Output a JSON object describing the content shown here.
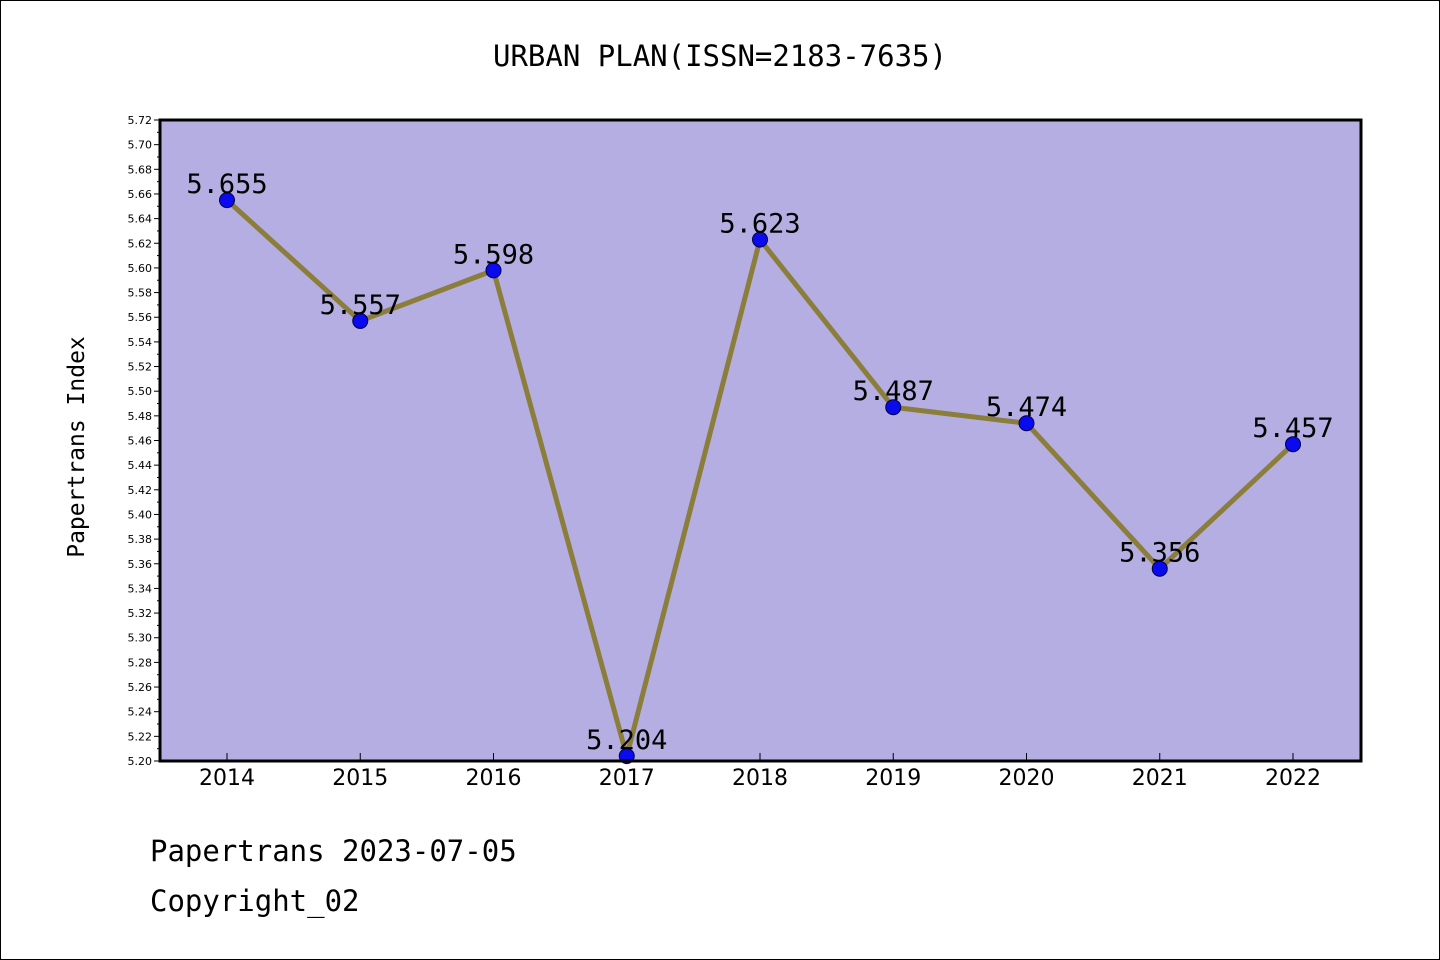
{
  "chart_data": {
    "type": "line",
    "title": "URBAN PLAN(ISSN=2183-7635)",
    "ylabel": "Papertrans Index",
    "xlabel": "",
    "categories": [
      "2014",
      "2015",
      "2016",
      "2017",
      "2018",
      "2019",
      "2020",
      "2021",
      "2022"
    ],
    "values": [
      5.655,
      5.557,
      5.598,
      5.204,
      5.623,
      5.487,
      5.474,
      5.356,
      5.457
    ],
    "data_labels": [
      "5.655",
      "5.557",
      "5.598",
      "5.204",
      "5.623",
      "5.487",
      "5.474",
      "5.356",
      "5.457"
    ],
    "ylim": [
      5.2,
      5.72
    ],
    "yticks": [
      "5.20",
      "5.22",
      "5.24",
      "5.26",
      "5.28",
      "5.30",
      "5.32",
      "5.34",
      "5.36",
      "5.38",
      "5.40",
      "5.42",
      "5.44",
      "5.46",
      "5.48",
      "5.50",
      "5.52",
      "5.54",
      "5.56",
      "5.58",
      "5.60",
      "5.62",
      "5.64",
      "5.66",
      "5.68",
      "5.70",
      "5.72"
    ],
    "grid": false,
    "legend": "none",
    "colors": {
      "plot_background": "#b5aee2",
      "line": "#8b7d3a",
      "marker": "#0a0aee",
      "axis": "#000000"
    }
  },
  "footer": {
    "line1": "Papertrans 2023-07-05",
    "line2": "Copyright_02"
  }
}
